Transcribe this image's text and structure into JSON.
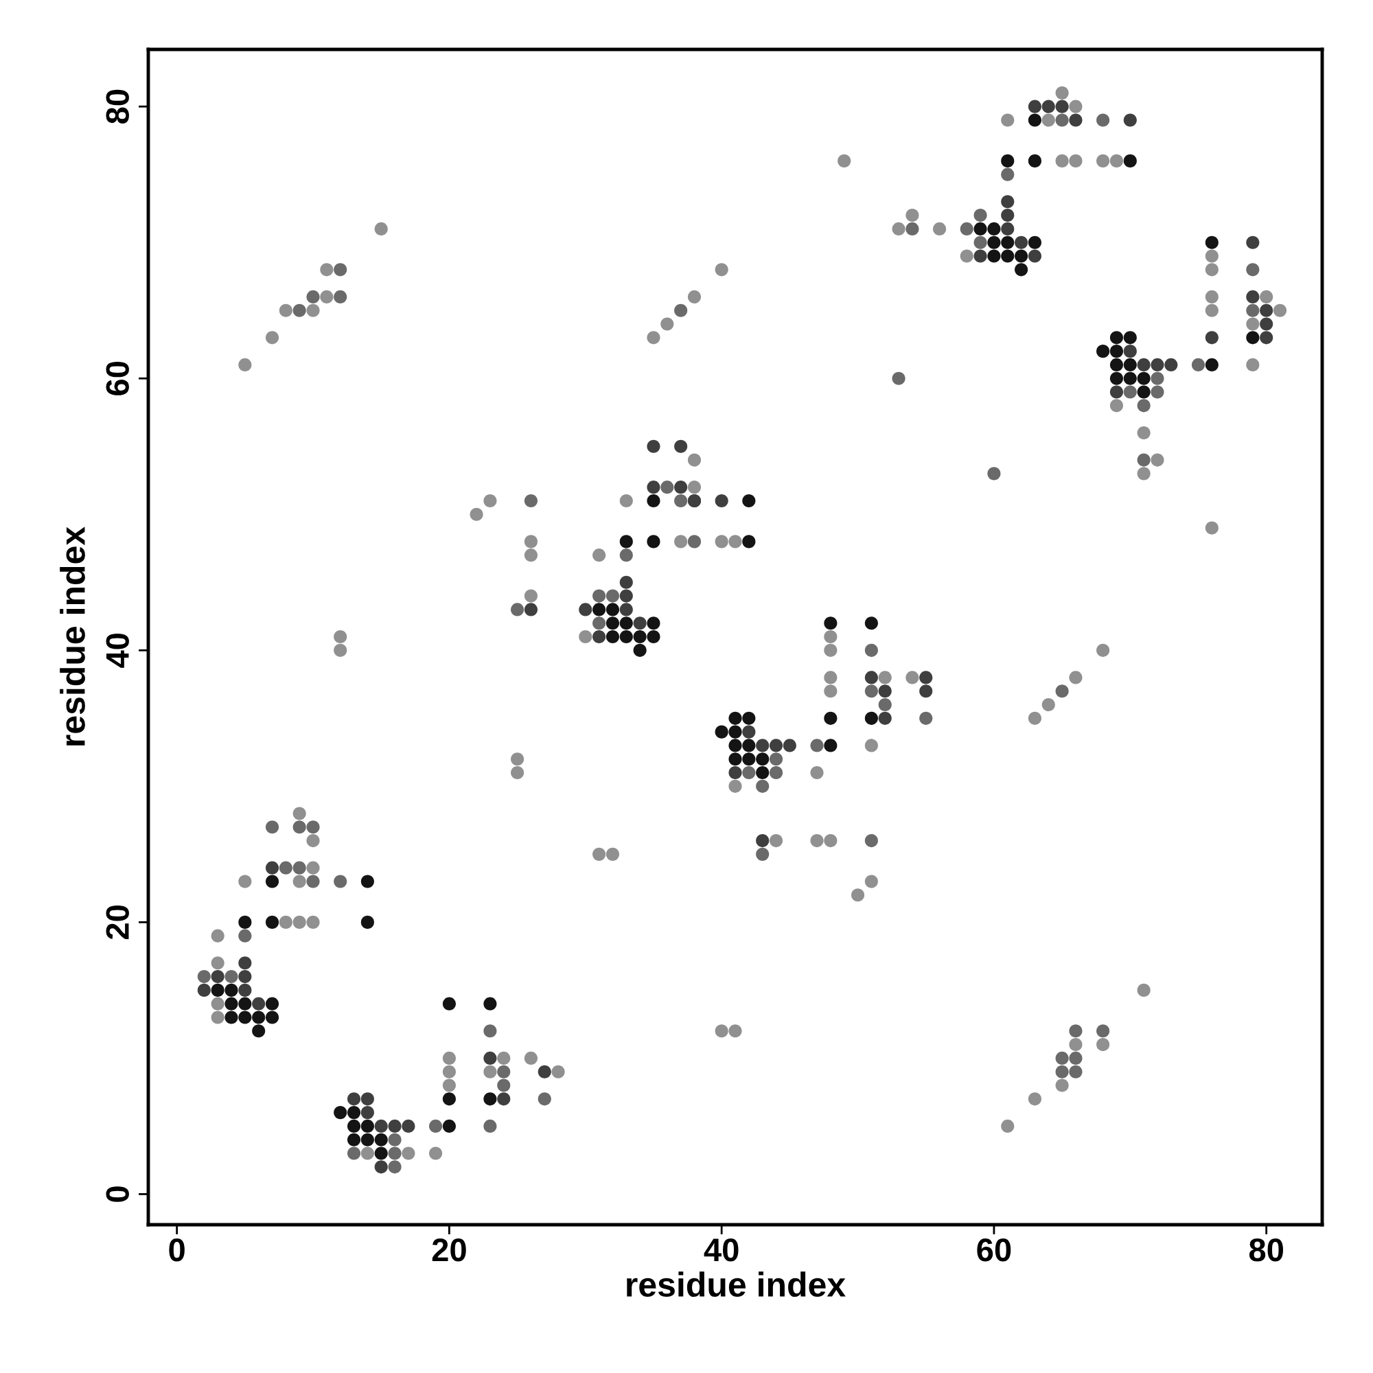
{
  "chart_data": {
    "type": "scatter",
    "xlabel": "residue index",
    "ylabel": "residue index",
    "xlim": [
      -2.1,
      84.1
    ],
    "ylim": [
      -2.25,
      84.2
    ],
    "xticks": [
      0,
      20,
      40,
      60,
      80
    ],
    "yticks": [
      0,
      20,
      40,
      60,
      80
    ],
    "grid": false,
    "marker": "circle",
    "series": [
      {
        "color": "#141414",
        "x": [
          5,
          7,
          14,
          7,
          14,
          3,
          4,
          4,
          5,
          7,
          4,
          5,
          6,
          7,
          6,
          20,
          23,
          20,
          23,
          12,
          13,
          13,
          14,
          20,
          13,
          14,
          15,
          15,
          41,
          42,
          43,
          43,
          41,
          42,
          40,
          41,
          41,
          42,
          48,
          48,
          51,
          48,
          51,
          35,
          42,
          33,
          35,
          42,
          31,
          32,
          32,
          33,
          35,
          32,
          33,
          34,
          35,
          34,
          59,
          60,
          60,
          61,
          63,
          60,
          61,
          62,
          62,
          63,
          61,
          63,
          70,
          76,
          69,
          70,
          79,
          68,
          69,
          69,
          70,
          76,
          69,
          70,
          71,
          71
        ],
        "values": [
          20,
          20,
          20,
          23,
          23,
          15,
          15,
          14,
          14,
          14,
          13,
          13,
          13,
          13,
          12,
          14,
          14,
          7,
          7,
          6,
          6,
          5,
          5,
          5,
          4,
          4,
          4,
          3,
          32,
          32,
          32,
          31,
          35,
          35,
          34,
          34,
          33,
          33,
          33,
          42,
          42,
          35,
          35,
          51,
          51,
          48,
          48,
          48,
          43,
          43,
          42,
          42,
          42,
          41,
          41,
          41,
          41,
          40,
          71,
          71,
          70,
          70,
          70,
          69,
          69,
          69,
          68,
          79,
          76,
          76,
          76,
          70,
          63,
          63,
          63,
          62,
          62,
          61,
          61,
          61,
          60,
          60,
          60,
          59
        ]
      },
      {
        "color": "#3f3f3f",
        "x": [
          7,
          5,
          3,
          5,
          2,
          5,
          6,
          23,
          27,
          24,
          13,
          14,
          14,
          15,
          16,
          17,
          15,
          43,
          26,
          30,
          42,
          43,
          44,
          45,
          41,
          35,
          37,
          38,
          35,
          37,
          38,
          40,
          33,
          33,
          33,
          34,
          31,
          51,
          55,
          52,
          55,
          52,
          63,
          64,
          65,
          66,
          70,
          61,
          61,
          61,
          62,
          59,
          63,
          79,
          79,
          80,
          80,
          76,
          80,
          70,
          71,
          72,
          73,
          69
        ],
        "values": [
          24,
          17,
          16,
          16,
          15,
          15,
          14,
          10,
          9,
          7,
          7,
          7,
          6,
          5,
          5,
          5,
          2,
          26,
          43,
          43,
          34,
          33,
          33,
          33,
          31,
          55,
          55,
          51,
          52,
          52,
          51,
          51,
          45,
          44,
          43,
          42,
          41,
          38,
          38,
          37,
          37,
          35,
          80,
          80,
          80,
          79,
          79,
          73,
          72,
          71,
          70,
          69,
          69,
          70,
          66,
          65,
          64,
          63,
          63,
          62,
          61,
          61,
          61,
          59
        ]
      },
      {
        "color": "#6a6a6a",
        "x": [
          7,
          9,
          10,
          8,
          9,
          10,
          12,
          5,
          2,
          4,
          24,
          24,
          27,
          19,
          23,
          16,
          13,
          16,
          16,
          23,
          66,
          68,
          65,
          66,
          65,
          66,
          44,
          42,
          44,
          43,
          43,
          51,
          12,
          10,
          12,
          9,
          26,
          25,
          54,
          58,
          59,
          59,
          37,
          53,
          36,
          37,
          38,
          33,
          31,
          32,
          31,
          51,
          51,
          52,
          55,
          47,
          65,
          68,
          61,
          79,
          79,
          75,
          72,
          70,
          72,
          71,
          71,
          60,
          65
        ],
        "values": [
          27,
          27,
          27,
          24,
          24,
          23,
          23,
          19,
          16,
          16,
          9,
          8,
          7,
          5,
          5,
          4,
          3,
          3,
          2,
          12,
          12,
          12,
          10,
          10,
          9,
          9,
          32,
          31,
          31,
          30,
          25,
          26,
          68,
          66,
          66,
          65,
          51,
          43,
          71,
          71,
          72,
          70,
          65,
          60,
          52,
          51,
          48,
          47,
          44,
          44,
          42,
          40,
          37,
          36,
          35,
          33,
          79,
          79,
          75,
          68,
          65,
          61,
          60,
          59,
          59,
          58,
          54,
          53,
          37
        ]
      },
      {
        "color": "#909090",
        "x": [
          9,
          10,
          10,
          5,
          9,
          8,
          9,
          10,
          3,
          3,
          3,
          3,
          20,
          24,
          26,
          20,
          23,
          28,
          20,
          14,
          17,
          19,
          25,
          25,
          31,
          32,
          44,
          47,
          48,
          51,
          50,
          40,
          41,
          41,
          47,
          71,
          66,
          68,
          65,
          63,
          61,
          15,
          11,
          11,
          8,
          10,
          7,
          5,
          23,
          22,
          26,
          26,
          26,
          30,
          12,
          12,
          49,
          54,
          53,
          56,
          58,
          40,
          38,
          36,
          35,
          38,
          38,
          33,
          37,
          40,
          41,
          31,
          48,
          48,
          48,
          52,
          54,
          48,
          51,
          65,
          66,
          61,
          64,
          65,
          66,
          68,
          69,
          76,
          76,
          76,
          80,
          76,
          81,
          79,
          79,
          69,
          71,
          72,
          71,
          76,
          68,
          66,
          64,
          63
        ],
        "values": [
          28,
          26,
          24,
          23,
          23,
          20,
          20,
          20,
          19,
          17,
          14,
          13,
          10,
          10,
          10,
          9,
          9,
          9,
          8,
          3,
          3,
          3,
          32,
          31,
          25,
          25,
          26,
          26,
          26,
          23,
          22,
          12,
          12,
          30,
          31,
          15,
          11,
          11,
          8,
          7,
          5,
          71,
          68,
          66,
          65,
          65,
          63,
          61,
          51,
          50,
          48,
          47,
          44,
          41,
          41,
          40,
          76,
          72,
          71,
          71,
          69,
          68,
          66,
          64,
          63,
          54,
          52,
          51,
          48,
          48,
          48,
          47,
          41,
          40,
          38,
          38,
          38,
          37,
          33,
          81,
          80,
          79,
          79,
          76,
          76,
          76,
          76,
          69,
          68,
          66,
          66,
          65,
          65,
          64,
          61,
          58,
          56,
          54,
          53,
          49,
          40,
          38,
          36,
          35
        ]
      }
    ]
  }
}
